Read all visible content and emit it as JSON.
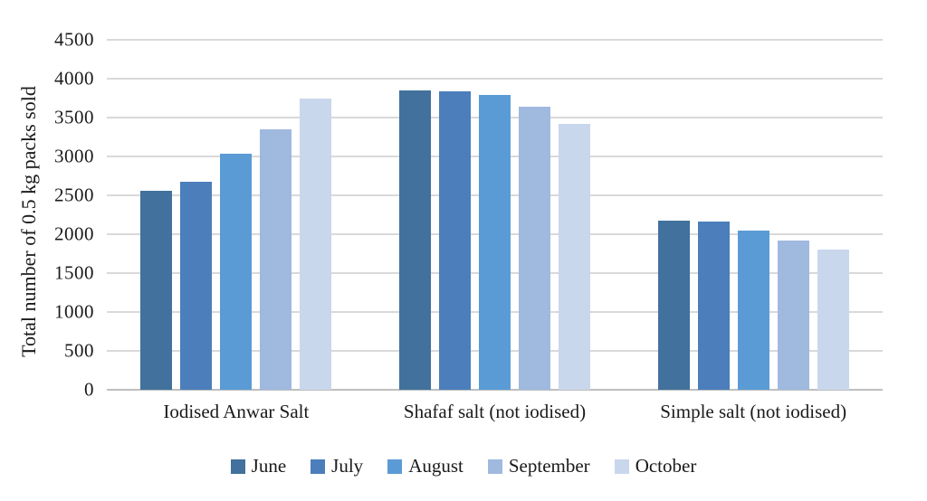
{
  "chart_data": {
    "type": "bar",
    "title": "",
    "ylabel": "Total number of 0.5 kg packs sold",
    "xlabel": "",
    "ylim": [
      0,
      4500
    ],
    "ytick_step": 500,
    "grid": true,
    "legend_position": "bottom",
    "categories": [
      "Iodised Anwar Salt",
      "Shafaf salt (not iodised)",
      "Simple salt (not iodised)"
    ],
    "series": [
      {
        "name": "June",
        "color": "#41719C",
        "values": [
          2560,
          3850,
          2180
        ]
      },
      {
        "name": "July",
        "color": "#4B7EBB",
        "values": [
          2670,
          3840,
          2160
        ]
      },
      {
        "name": "August",
        "color": "#5B9BD5",
        "values": [
          3040,
          3790,
          2050
        ]
      },
      {
        "name": "September",
        "color": "#9FB9DF",
        "values": [
          3350,
          3640,
          1920
        ]
      },
      {
        "name": "October",
        "color": "#C9D7EC",
        "values": [
          3740,
          3420,
          1800
        ]
      }
    ],
    "gridline_color": "#d9d9d9",
    "axis_line_color": "#bfbfbf"
  }
}
